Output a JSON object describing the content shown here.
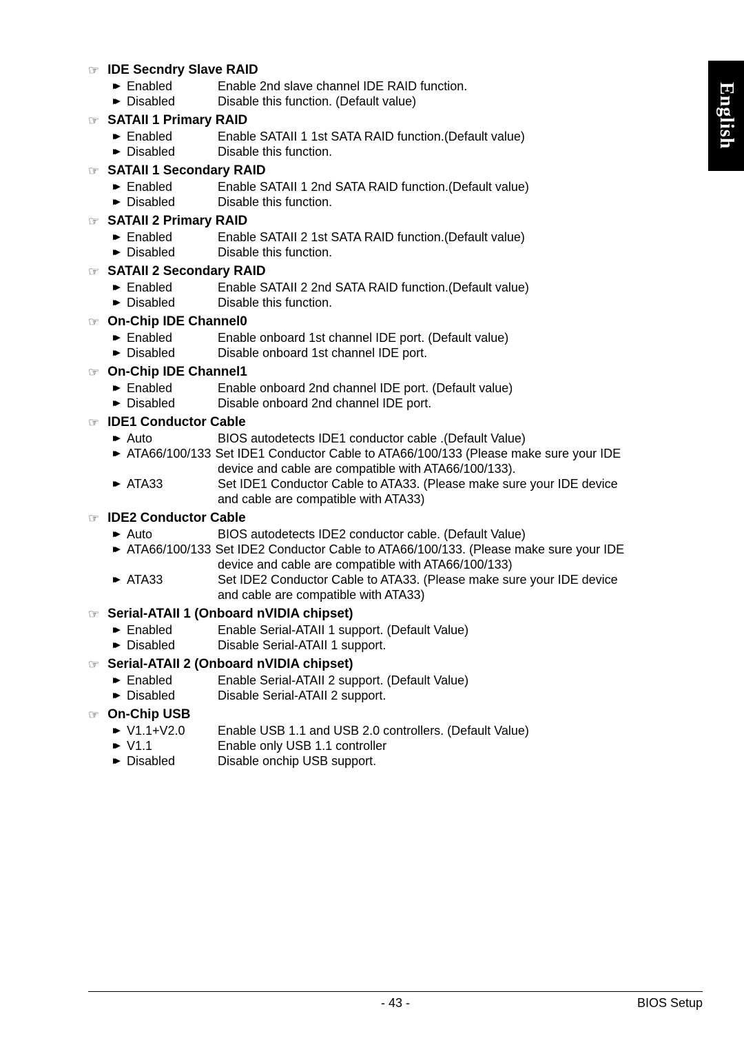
{
  "sideTab": "English",
  "sections": [
    {
      "title": "IDE Secndry Slave RAID",
      "items": [
        {
          "label": "Enabled",
          "desc": "Enable 2nd slave channel IDE RAID function."
        },
        {
          "label": "Disabled",
          "desc": "Disable this function. (Default value)"
        }
      ]
    },
    {
      "title": "SATAII 1 Primary RAID",
      "items": [
        {
          "label": "Enabled",
          "desc": "Enable SATAII 1 1st SATA RAID function.(Default value)"
        },
        {
          "label": "Disabled",
          "desc": "Disable this function."
        }
      ]
    },
    {
      "title": "SATAII 1 Secondary RAID",
      "items": [
        {
          "label": "Enabled",
          "desc": "Enable SATAII 1 2nd SATA RAID function.(Default value)"
        },
        {
          "label": "Disabled",
          "desc": "Disable this function."
        }
      ]
    },
    {
      "title": "SATAII 2 Primary RAID",
      "items": [
        {
          "label": "Enabled",
          "desc": "Enable SATAII 2 1st SATA RAID function.(Default value)"
        },
        {
          "label": "Disabled",
          "desc": "Disable this function."
        }
      ]
    },
    {
      "title": "SATAII 2 Secondary RAID",
      "items": [
        {
          "label": "Enabled",
          "desc": "Enable SATAII 2 2nd SATA RAID function.(Default value)"
        },
        {
          "label": "Disabled",
          "desc": "Disable this function."
        }
      ]
    },
    {
      "title": "On-Chip IDE Channel0",
      "items": [
        {
          "label": "Enabled",
          "desc": "Enable onboard 1st channel IDE port. (Default value)"
        },
        {
          "label": "Disabled",
          "desc": "Disable onboard 1st channel IDE port."
        }
      ]
    },
    {
      "title": "On-Chip IDE Channel1",
      "items": [
        {
          "label": "Enabled",
          "desc": "Enable onboard 2nd channel IDE port. (Default value)"
        },
        {
          "label": "Disabled",
          "desc": "Disable onboard 2nd channel IDE port."
        }
      ]
    },
    {
      "title": "IDE1 Conductor Cable",
      "items": [
        {
          "label": "Auto",
          "desc": "BIOS autodetects IDE1 conductor cable .(Default Value)"
        },
        {
          "label": "ATA66/100/133",
          "wide": true,
          "desc": "Set IDE1 Conductor Cable to ATA66/100/133 (Please make sure your IDE",
          "cont": "device and cable are compatible with ATA66/100/133)."
        },
        {
          "label": "ATA33",
          "desc": "Set IDE1 Conductor Cable to ATA33. (Please make sure your IDE device",
          "cont": "and cable are compatible with ATA33)"
        }
      ]
    },
    {
      "title": "IDE2 Conductor Cable",
      "items": [
        {
          "label": "Auto",
          "desc": "BIOS autodetects IDE2 conductor cable. (Default Value)"
        },
        {
          "label": "ATA66/100/133",
          "wide": true,
          "desc": "Set IDE2 Conductor Cable to ATA66/100/133. (Please make sure your IDE",
          "cont": "device and cable are compatible with ATA66/100/133)"
        },
        {
          "label": "ATA33",
          "desc": "Set IDE2 Conductor Cable to ATA33. (Please make sure your IDE device",
          "cont": "and cable are compatible with ATA33)"
        }
      ]
    },
    {
      "title": "Serial-ATAII 1 (Onboard nVIDIA chipset)",
      "items": [
        {
          "label": "Enabled",
          "desc": "Enable Serial-ATAII 1 support. (Default Value)"
        },
        {
          "label": "Disabled",
          "desc": "Disable Serial-ATAII 1 support."
        }
      ]
    },
    {
      "title": "Serial-ATAII 2  (Onboard nVIDIA chipset)",
      "items": [
        {
          "label": "Enabled",
          "desc": "Enable Serial-ATAII 2 support. (Default Value)"
        },
        {
          "label": "Disabled",
          "desc": "Disable Serial-ATAII 2 support."
        }
      ]
    },
    {
      "title": "On-Chip USB",
      "items": [
        {
          "label": "V1.1+V2.0",
          "desc": "Enable USB 1.1 and USB 2.0 controllers. (Default Value)"
        },
        {
          "label": "V1.1",
          "desc": "Enable only USB 1.1 controller"
        },
        {
          "label": "Disabled",
          "desc": "Disable onchip USB support."
        }
      ]
    }
  ],
  "footer": {
    "page": "- 43 -",
    "right": "BIOS Setup"
  }
}
